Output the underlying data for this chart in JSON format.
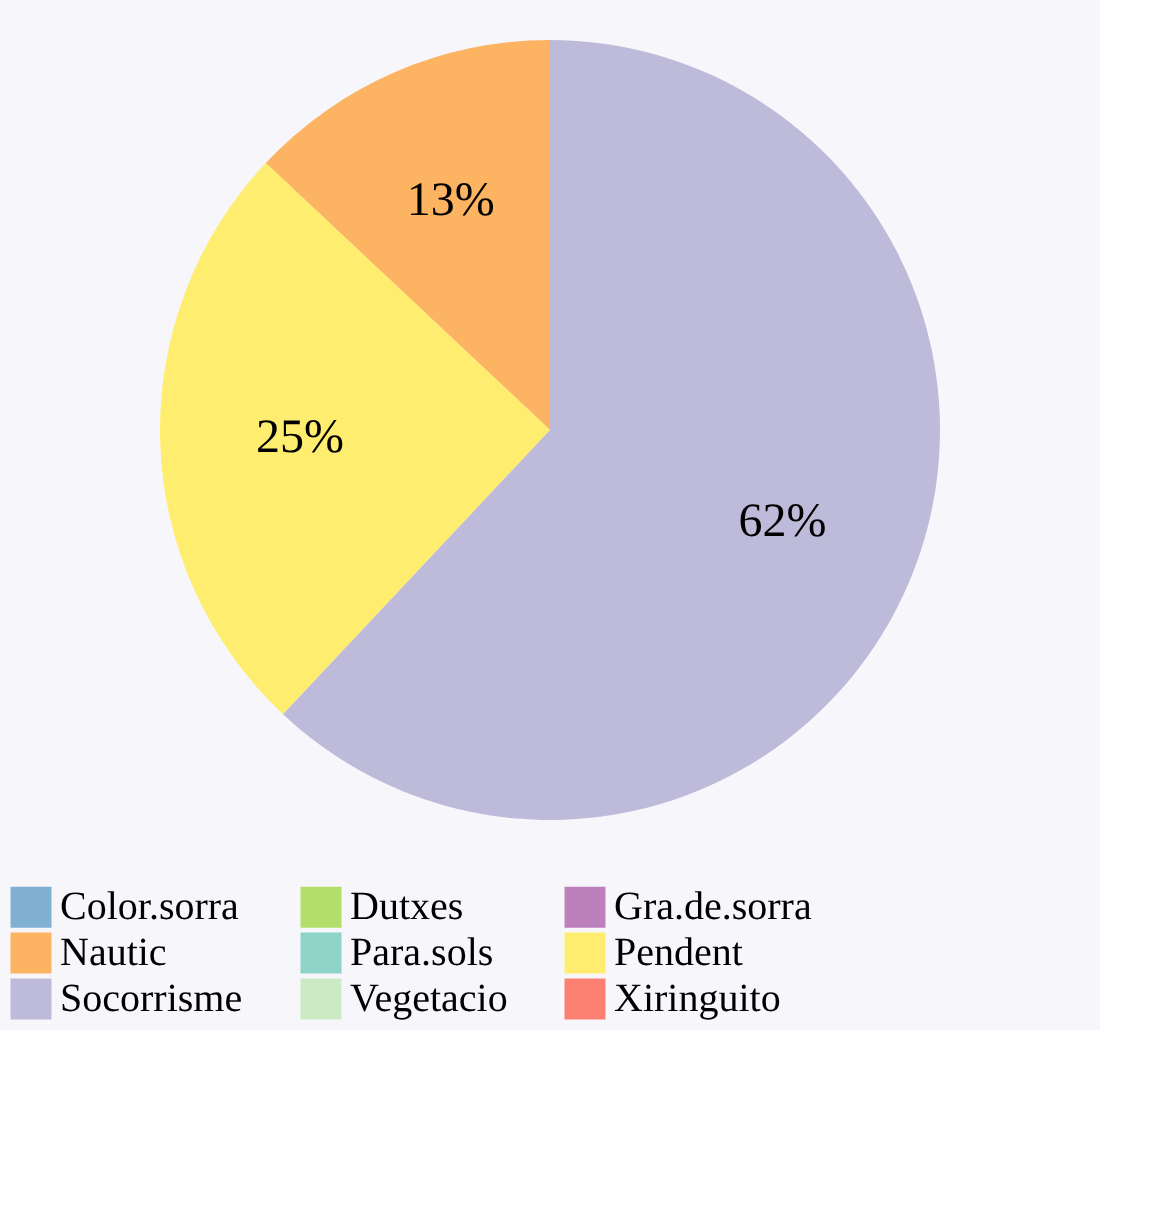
{
  "chart_data": {
    "type": "pie",
    "categories": [
      "Color.sorra",
      "Dutxes",
      "Gra.de.sorra",
      "Nautic",
      "Para.sols",
      "Pendent",
      "Socorrisme",
      "Vegetacio",
      "Xiringuito"
    ],
    "values": [
      0,
      0,
      0,
      13,
      0,
      25,
      62,
      0,
      0
    ],
    "value_labels": [
      null,
      null,
      null,
      "13%",
      null,
      "25%",
      "62%",
      null,
      null
    ],
    "colors": [
      "#80b1d3",
      "#b3de69",
      "#bc80bd",
      "#fdb462",
      "#8dd3c7",
      "#ffed6f",
      "#bebada",
      "#ccebc5",
      "#fb8072"
    ],
    "legend": "bottom"
  }
}
